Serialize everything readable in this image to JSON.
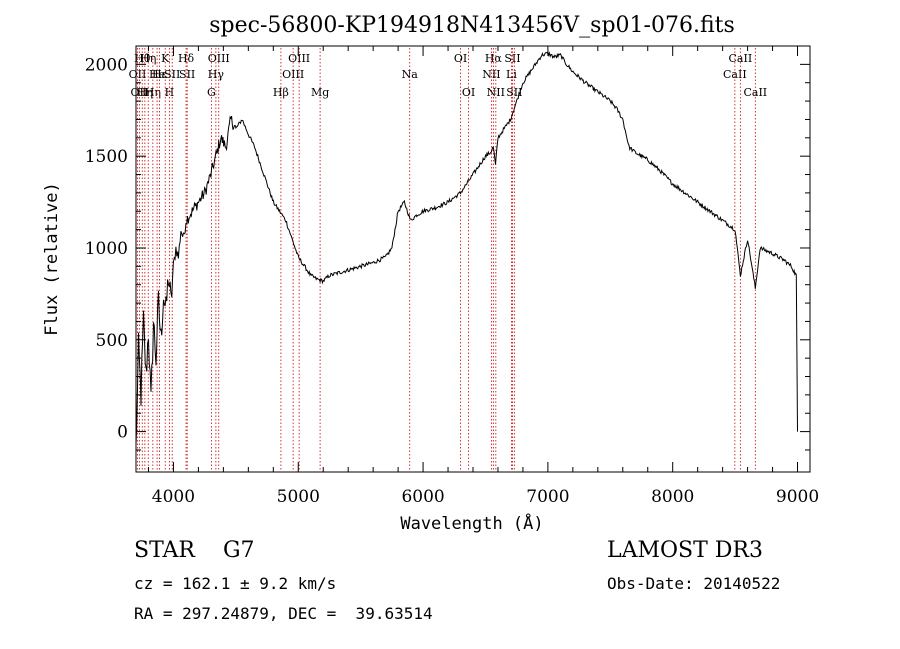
{
  "chart_data": {
    "type": "line",
    "title": "spec-56800-KP194918N413456V_sp01-076.fits",
    "xlabel": "Wavelength (Å)",
    "ylabel": "Flux (relative)",
    "xlim": [
      3700,
      9100
    ],
    "ylim": [
      -220,
      2100
    ],
    "xticks": [
      4000,
      5000,
      6000,
      7000,
      8000,
      9000
    ],
    "yticks": [
      0,
      500,
      1000,
      1500,
      2000
    ],
    "grid": false,
    "line_color": "#000000",
    "marker_color": "#cc0000",
    "series": [
      {
        "x": [
          3700,
          3720,
          3740,
          3760,
          3780,
          3800,
          3820,
          3840,
          3860,
          3880,
          3900,
          3920,
          3940,
          3960,
          3980,
          4000,
          4020,
          4040,
          4060,
          4080,
          4100,
          4150,
          4200,
          4250,
          4300,
          4340,
          4380,
          4420,
          4460,
          4500,
          4550,
          4600,
          4650,
          4700,
          4750,
          4800,
          4850,
          4900,
          4950,
          5000,
          5050,
          5100,
          5150,
          5200,
          5250,
          5300,
          5400,
          5500,
          5600,
          5700,
          5750,
          5800,
          5850,
          5900,
          5950,
          6000,
          6100,
          6200,
          6300,
          6350,
          6400,
          6450,
          6500,
          6540,
          6563,
          6580,
          6600,
          6650,
          6700,
          6750,
          6800,
          6850,
          6900,
          6950,
          7000,
          7050,
          7100,
          7150,
          7200,
          7300,
          7400,
          7500,
          7550,
          7600,
          7650,
          7700,
          7800,
          7900,
          8000,
          8100,
          8200,
          8300,
          8400,
          8500,
          8542,
          8600,
          8662,
          8700,
          8800,
          8900,
          8950,
          8990,
          9000
        ],
        "y": [
          -100,
          450,
          200,
          600,
          300,
          550,
          150,
          600,
          400,
          700,
          500,
          750,
          650,
          850,
          700,
          900,
          1000,
          950,
          1100,
          1050,
          1150,
          1200,
          1250,
          1300,
          1400,
          1500,
          1600,
          1550,
          1700,
          1650,
          1700,
          1620,
          1550,
          1450,
          1350,
          1250,
          1200,
          1150,
          1050,
          950,
          900,
          850,
          830,
          820,
          850,
          860,
          880,
          900,
          920,
          950,
          1000,
          1200,
          1250,
          1150,
          1180,
          1200,
          1220,
          1250,
          1300,
          1350,
          1400,
          1450,
          1500,
          1520,
          1550,
          1450,
          1600,
          1650,
          1700,
          1800,
          1900,
          1950,
          2000,
          2050,
          2060,
          2040,
          2050,
          2000,
          1960,
          1900,
          1850,
          1800,
          1760,
          1700,
          1550,
          1520,
          1480,
          1420,
          1350,
          1300,
          1250,
          1200,
          1150,
          1100,
          850,
          1050,
          780,
          1000,
          970,
          930,
          900,
          850,
          0
        ]
      }
    ],
    "markers": [
      {
        "x": 3712,
        "label": "OII",
        "row": 2
      },
      {
        "x": 3727,
        "label": "OII",
        "row": 3
      },
      {
        "x": 3750,
        "label": "Hθ",
        "row": 1
      },
      {
        "x": 3771,
        "label": "Hη",
        "row": 3
      },
      {
        "x": 3798,
        "label": "Hη",
        "row": 1
      },
      {
        "x": 3835,
        "label": "Hη",
        "row": 3
      },
      {
        "x": 3869,
        "label": "He",
        "row": 2
      },
      {
        "x": 3889,
        "label": "Hε",
        "row": 2
      },
      {
        "x": 3934,
        "label": "K",
        "row": 1
      },
      {
        "x": 3968,
        "label": "H",
        "row": 3
      },
      {
        "x": 3990,
        "label": "SII",
        "row": 2
      },
      {
        "x": 4101,
        "label": "Hδ",
        "row": 1
      },
      {
        "x": 4110,
        "label": "SII",
        "row": 2
      },
      {
        "x": 4304,
        "label": "G",
        "row": 3
      },
      {
        "x": 4340,
        "label": "Hγ",
        "row": 2
      },
      {
        "x": 4363,
        "label": "OIII",
        "row": 1
      },
      {
        "x": 4861,
        "label": "Hβ",
        "row": 3
      },
      {
        "x": 4959,
        "label": "OIII",
        "row": 2
      },
      {
        "x": 5007,
        "label": "OIII",
        "row": 1
      },
      {
        "x": 5175,
        "label": "Mg",
        "row": 3
      },
      {
        "x": 5893,
        "label": "Na",
        "row": 2
      },
      {
        "x": 6300,
        "label": "OI",
        "row": 1
      },
      {
        "x": 6364,
        "label": "OI",
        "row": 3
      },
      {
        "x": 6548,
        "label": "NII",
        "row": 2
      },
      {
        "x": 6563,
        "label": "Hα",
        "row": 1
      },
      {
        "x": 6583,
        "label": "NII",
        "row": 3
      },
      {
        "x": 6708,
        "label": "Li",
        "row": 2
      },
      {
        "x": 6716,
        "label": "SII",
        "row": 1
      },
      {
        "x": 6731,
        "label": "SII",
        "row": 3
      },
      {
        "x": 8498,
        "label": "CaII",
        "row": 2
      },
      {
        "x": 8542,
        "label": "CaII",
        "row": 1
      },
      {
        "x": 8662,
        "label": "CaII",
        "row": 3
      }
    ]
  },
  "info": {
    "class": "STAR    G7",
    "survey": "LAMOST DR3",
    "cz": "cz = 162.1 ± 9.2 km/s",
    "obs_date": "Obs-Date: 20140522",
    "coords": "RA = 297.24879, DEC =  39.63514"
  }
}
